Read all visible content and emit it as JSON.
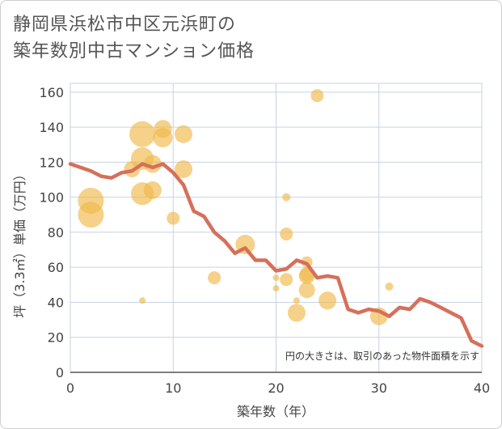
{
  "chart_data": {
    "type": "scatter",
    "title_line1": "静岡県浜松市中区元浜町の",
    "title_line2": "築年数別中古マンション価格",
    "xlabel": "築年数（年）",
    "ylabel": "坪（3.3㎡）単価（万円）",
    "xlim": [
      0,
      40
    ],
    "ylim": [
      0,
      165
    ],
    "xticks": [
      0,
      10,
      20,
      30,
      40
    ],
    "yticks": [
      0,
      20,
      40,
      60,
      80,
      100,
      120,
      140,
      160
    ],
    "grid": true,
    "note": "円の大きさは、取引のあった物件面積を示す",
    "colors": {
      "bubble": "#f0b84a",
      "line": "#d5705a",
      "grid": "#c7d3e2"
    },
    "bubbles": [
      {
        "x": 2,
        "y": 98,
        "r": 16
      },
      {
        "x": 2,
        "y": 90,
        "r": 16
      },
      {
        "x": 6,
        "y": 116,
        "r": 10
      },
      {
        "x": 7,
        "y": 136,
        "r": 16
      },
      {
        "x": 7,
        "y": 122,
        "r": 14
      },
      {
        "x": 7,
        "y": 102,
        "r": 14
      },
      {
        "x": 7,
        "y": 41,
        "r": 4
      },
      {
        "x": 8,
        "y": 119,
        "r": 11
      },
      {
        "x": 8,
        "y": 104,
        "r": 11
      },
      {
        "x": 9,
        "y": 139,
        "r": 11
      },
      {
        "x": 9,
        "y": 134,
        "r": 12
      },
      {
        "x": 10,
        "y": 88,
        "r": 8
      },
      {
        "x": 11,
        "y": 136,
        "r": 11
      },
      {
        "x": 11,
        "y": 116,
        "r": 11
      },
      {
        "x": 14,
        "y": 54,
        "r": 8
      },
      {
        "x": 17,
        "y": 73,
        "r": 12
      },
      {
        "x": 20,
        "y": 54,
        "r": 4
      },
      {
        "x": 20,
        "y": 48,
        "r": 4
      },
      {
        "x": 21,
        "y": 100,
        "r": 5
      },
      {
        "x": 21,
        "y": 79,
        "r": 8
      },
      {
        "x": 21,
        "y": 53,
        "r": 8
      },
      {
        "x": 22,
        "y": 41,
        "r": 4
      },
      {
        "x": 22,
        "y": 34,
        "r": 11
      },
      {
        "x": 23,
        "y": 63,
        "r": 7
      },
      {
        "x": 23,
        "y": 56,
        "r": 9
      },
      {
        "x": 23,
        "y": 55,
        "r": 10
      },
      {
        "x": 23,
        "y": 47,
        "r": 10
      },
      {
        "x": 24,
        "y": 158,
        "r": 8
      },
      {
        "x": 25,
        "y": 41,
        "r": 11
      },
      {
        "x": 30,
        "y": 32,
        "r": 11
      },
      {
        "x": 31,
        "y": 49,
        "r": 5
      }
    ],
    "trend": [
      {
        "x": 0,
        "y": 119
      },
      {
        "x": 1,
        "y": 117
      },
      {
        "x": 2,
        "y": 115
      },
      {
        "x": 3,
        "y": 112
      },
      {
        "x": 4,
        "y": 111
      },
      {
        "x": 5,
        "y": 114
      },
      {
        "x": 6,
        "y": 115
      },
      {
        "x": 7,
        "y": 119
      },
      {
        "x": 8,
        "y": 117
      },
      {
        "x": 9,
        "y": 119
      },
      {
        "x": 10,
        "y": 114
      },
      {
        "x": 11,
        "y": 107
      },
      {
        "x": 12,
        "y": 92
      },
      {
        "x": 13,
        "y": 89
      },
      {
        "x": 14,
        "y": 80
      },
      {
        "x": 15,
        "y": 75
      },
      {
        "x": 16,
        "y": 68
      },
      {
        "x": 17,
        "y": 71
      },
      {
        "x": 18,
        "y": 64
      },
      {
        "x": 19,
        "y": 64
      },
      {
        "x": 20,
        "y": 58
      },
      {
        "x": 21,
        "y": 59
      },
      {
        "x": 22,
        "y": 64
      },
      {
        "x": 23,
        "y": 62
      },
      {
        "x": 24,
        "y": 54
      },
      {
        "x": 25,
        "y": 55
      },
      {
        "x": 26,
        "y": 54
      },
      {
        "x": 27,
        "y": 36
      },
      {
        "x": 28,
        "y": 34
      },
      {
        "x": 29,
        "y": 36
      },
      {
        "x": 30,
        "y": 35
      },
      {
        "x": 31,
        "y": 32
      },
      {
        "x": 32,
        "y": 37
      },
      {
        "x": 33,
        "y": 36
      },
      {
        "x": 34,
        "y": 42
      },
      {
        "x": 35,
        "y": 40
      },
      {
        "x": 36,
        "y": 37
      },
      {
        "x": 37,
        "y": 34
      },
      {
        "x": 38,
        "y": 31
      },
      {
        "x": 39,
        "y": 18
      },
      {
        "x": 40,
        "y": 15
      }
    ]
  }
}
